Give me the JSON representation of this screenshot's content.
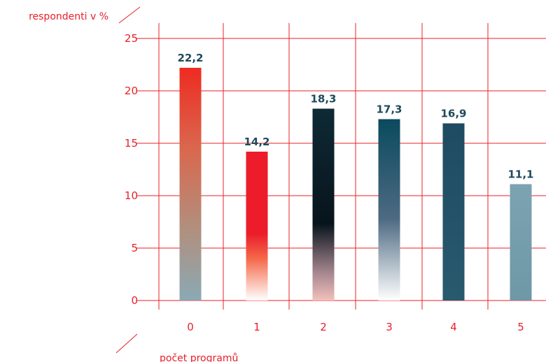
{
  "chart_data": {
    "type": "bar",
    "ylabel": "respondenti v %",
    "xlabel": "počet programů",
    "categories": [
      "0",
      "1",
      "2",
      "3",
      "4",
      "5"
    ],
    "values": [
      22.2,
      14.2,
      18.3,
      17.3,
      16.9,
      11.1
    ],
    "value_labels": [
      "22,2",
      "14,2",
      "18,3",
      "17,3",
      "16,9",
      "11,1"
    ],
    "yticks": [
      "0",
      "5",
      "10",
      "15",
      "20",
      "25"
    ],
    "ylim": [
      0,
      25
    ],
    "grid": true,
    "colors": {
      "axis": "#e8202a",
      "value_label": "#1e4a5c"
    }
  }
}
